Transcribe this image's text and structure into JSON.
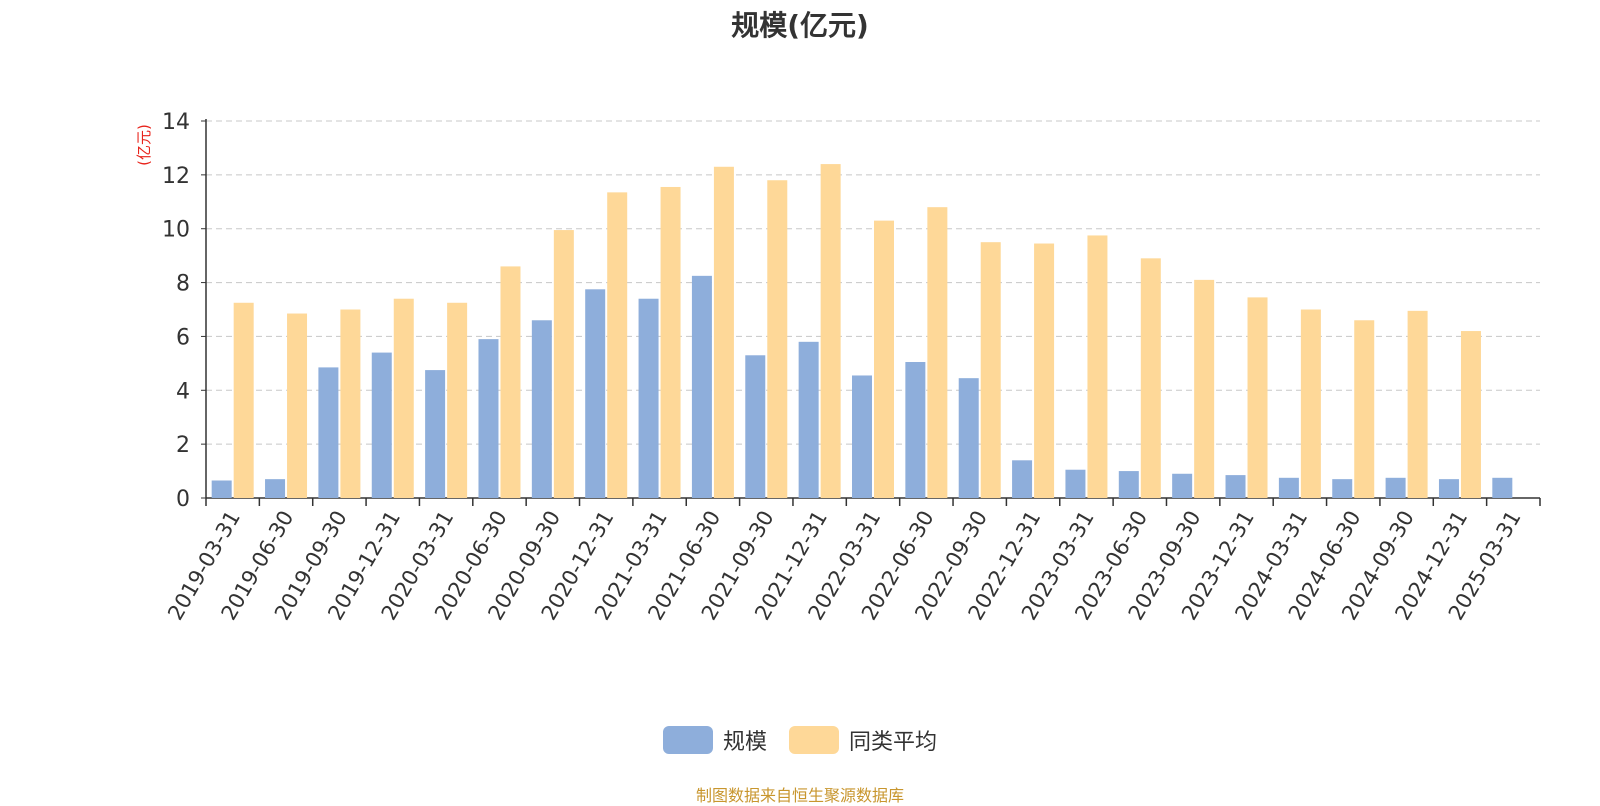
{
  "title": "规模(亿元)",
  "source_note": "制图数据来自恒生聚源数据库",
  "colors": {
    "series_1": "#8eaedb",
    "series_2": "#fed898",
    "axis": "#333333",
    "grid": "#c8c8c8",
    "unit_label": "#e8231b",
    "source": "#c8962e"
  },
  "chart_data": {
    "type": "bar",
    "title": "规模(亿元)",
    "ylabel": "(亿元)",
    "xlabel": "",
    "ylim": [
      0,
      14
    ],
    "yticks": [
      0,
      2,
      4,
      6,
      8,
      10,
      12,
      14
    ],
    "grid": true,
    "legend_position": "bottom",
    "categories": [
      "2019-03-31",
      "2019-06-30",
      "2019-09-30",
      "2019-12-31",
      "2020-03-31",
      "2020-06-30",
      "2020-09-30",
      "2020-12-31",
      "2021-03-31",
      "2021-06-30",
      "2021-09-30",
      "2021-12-31",
      "2022-03-31",
      "2022-06-30",
      "2022-09-30",
      "2022-12-31",
      "2023-03-31",
      "2023-06-30",
      "2023-09-30",
      "2023-12-31",
      "2024-03-31",
      "2024-06-30",
      "2024-09-30",
      "2024-12-31",
      "2025-03-31"
    ],
    "series": [
      {
        "name": "规模",
        "values": [
          0.65,
          0.7,
          4.85,
          5.4,
          4.75,
          5.9,
          6.6,
          7.75,
          7.4,
          8.25,
          5.3,
          5.8,
          4.55,
          5.05,
          4.45,
          1.4,
          1.05,
          1.0,
          0.9,
          0.85,
          0.75,
          0.7,
          0.75,
          0.7,
          0.75
        ]
      },
      {
        "name": "同类平均",
        "values": [
          7.25,
          6.85,
          7.0,
          7.4,
          7.25,
          8.6,
          9.95,
          11.35,
          11.55,
          12.3,
          11.8,
          12.4,
          10.3,
          10.8,
          9.5,
          9.45,
          9.75,
          8.9,
          8.1,
          7.45,
          7.0,
          6.6,
          6.95,
          6.2,
          null
        ]
      }
    ]
  }
}
